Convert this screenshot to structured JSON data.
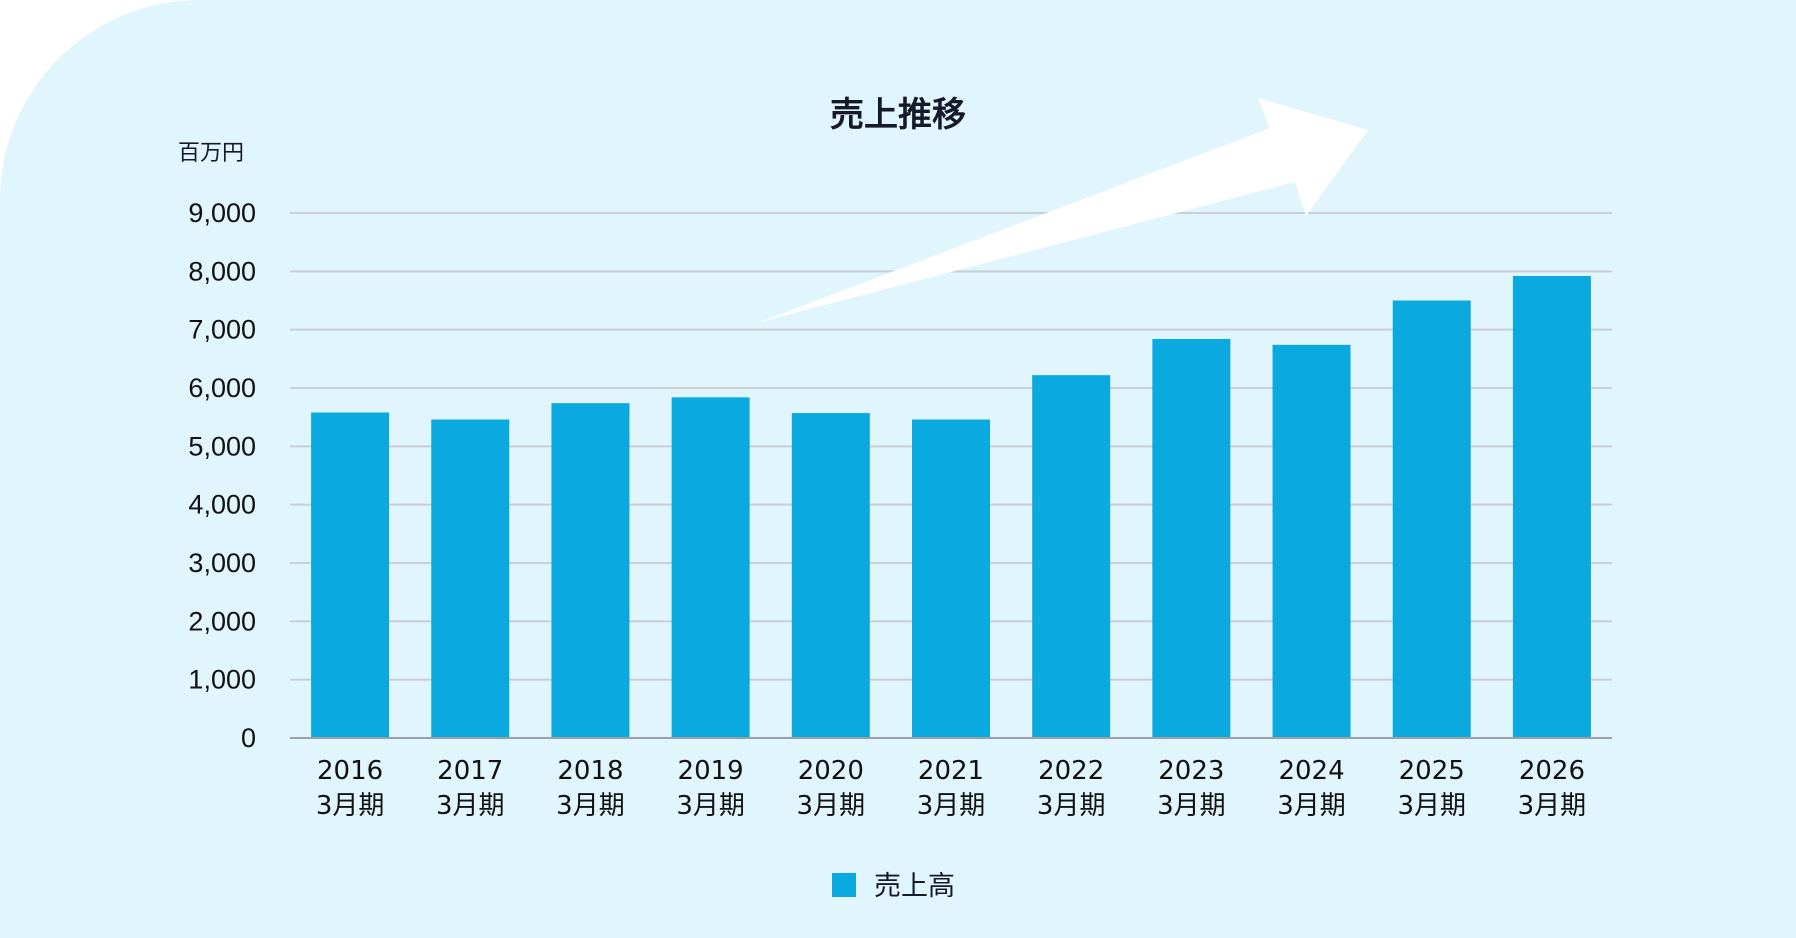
{
  "colors": {
    "background": "#e1f5fc",
    "bar": "#0aa9df",
    "gridline": "#c9cfd4",
    "axis": "#9aa0a6",
    "arrow": "#ffffff"
  },
  "chart_data": {
    "type": "bar",
    "title": "売上推移",
    "unit_label": "百万円",
    "categories": [
      [
        "2016",
        "3月期"
      ],
      [
        "2017",
        "3月期"
      ],
      [
        "2018",
        "3月期"
      ],
      [
        "2019",
        "3月期"
      ],
      [
        "2020",
        "3月期"
      ],
      [
        "2021",
        "3月期"
      ],
      [
        "2022",
        "3月期"
      ],
      [
        "2023",
        "3月期"
      ],
      [
        "2024",
        "3月期"
      ],
      [
        "2025",
        "3月期"
      ],
      [
        "2026",
        "3月期"
      ]
    ],
    "series": [
      {
        "name": "売上高",
        "values": [
          5580,
          5460,
          5740,
          5840,
          5570,
          5460,
          6220,
          6840,
          6740,
          7500,
          7920
        ]
      }
    ],
    "ylim": [
      0,
      9000
    ],
    "yticks": [
      0,
      1000,
      2000,
      3000,
      4000,
      5000,
      6000,
      7000,
      8000,
      9000
    ],
    "ytick_labels": [
      "0",
      "1,000",
      "2,000",
      "3,000",
      "4,000",
      "5,000",
      "6,000",
      "7,000",
      "8,000",
      "9,000"
    ],
    "grid": true,
    "legend_position": "bottom-center",
    "decoration": "upward-trend-arrow"
  }
}
